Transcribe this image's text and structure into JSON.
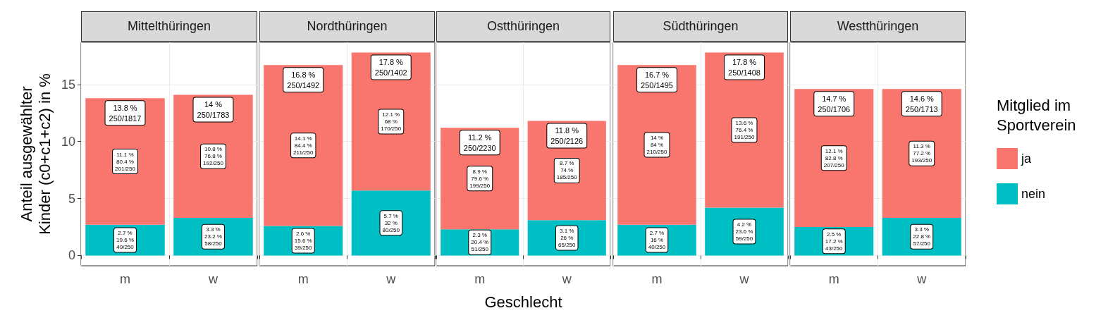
{
  "chart_data": [
    {
      "type": "bar",
      "stacked": true,
      "title": "Mittelthüringen",
      "ylabel": "Anteil ausgewählter\nKinder (c0+c1+c2) in %",
      "categories": [
        "m",
        "w"
      ],
      "ylim": [
        -0.9,
        18.7
      ],
      "yticks": [
        0,
        5,
        10,
        15
      ],
      "grid": true,
      "totals": [
        "13.8 %\n250/1817",
        "14 %\n250/1783"
      ],
      "series": [
        {
          "color": "#00bfc4",
          "values": [
            2.7,
            3.3
          ],
          "value_labels": [
            "2.7 %\n19.6 %\n49/250",
            "3.3 %\n23.2 %\n58/250"
          ]
        },
        {
          "color": "#f8766d",
          "values": [
            11.1,
            10.8
          ],
          "value_labels": [
            "11.1 %\n80.4 %\n201/250",
            "10.8 %\n76.8 %\n192/250"
          ]
        }
      ]
    },
    {
      "type": "bar",
      "stacked": true,
      "title": "Nordthüringen",
      "categories": [
        "m",
        "w"
      ],
      "ylim": [
        -0.9,
        18.7
      ],
      "yticks": [
        0,
        5,
        10,
        15
      ],
      "grid": true,
      "tick_labels": "x",
      "totals": [
        "16.8 %\n250/1492",
        "17.8 %\n250/1402"
      ],
      "series": [
        {
          "color": "#00bfc4",
          "values": [
            2.6,
            5.7
          ],
          "value_labels": [
            "2.6 %\n15.6 %\n39/250",
            "5.7 %\n32 %\n80/250"
          ]
        },
        {
          "color": "#f8766d",
          "values": [
            14.1,
            12.1
          ],
          "value_labels": [
            "14.1 %\n84.4 %\n211/250",
            "12.1 %\n68 %\n170/250"
          ]
        }
      ]
    },
    {
      "type": "bar",
      "stacked": true,
      "title": "Ostthüringen",
      "xlabel": "Geschlecht",
      "categories": [
        "m",
        "w"
      ],
      "ylim": [
        -0.9,
        18.7
      ],
      "yticks": [
        0,
        5,
        10,
        15
      ],
      "grid": true,
      "tick_labels": "x",
      "totals": [
        "11.2 %\n250/2230",
        "11.8 %\n250/2126"
      ],
      "series": [
        {
          "color": "#00bfc4",
          "values": [
            2.3,
            3.1
          ],
          "value_labels": [
            "2.3 %\n20.4 %\n51/250",
            "3.1 %\n26 %\n65/250"
          ]
        },
        {
          "color": "#f8766d",
          "values": [
            8.9,
            8.7
          ],
          "value_labels": [
            "8.9 %\n79.6 %\n199/250",
            "8.7 %\n74 %\n185/250"
          ]
        }
      ]
    },
    {
      "type": "bar",
      "stacked": true,
      "title": "Südthüringen",
      "categories": [
        "m",
        "w"
      ],
      "ylim": [
        -0.9,
        18.7
      ],
      "yticks": [
        0,
        5,
        10,
        15
      ],
      "grid": true,
      "tick_labels": "x",
      "totals": [
        "16.7 %\n250/1495",
        "17.8 %\n250/1408"
      ],
      "series": [
        {
          "color": "#00bfc4",
          "values": [
            2.7,
            4.2
          ],
          "value_labels": [
            "2.7 %\n16 %\n40/250",
            "4.2 %\n23.6 %\n59/250"
          ]
        },
        {
          "color": "#f8766d",
          "values": [
            14,
            13.6
          ],
          "value_labels": [
            "14 %\n84 %\n210/250",
            "13.6 %\n76.4 %\n191/250"
          ]
        }
      ]
    },
    {
      "type": "bar",
      "stacked": true,
      "title": "Westthüringen",
      "categories": [
        "m",
        "w"
      ],
      "ylim": [
        -0.9,
        18.7
      ],
      "yticks": [
        0,
        5,
        10,
        15
      ],
      "grid": true,
      "tick_labels": "x",
      "legend": "right",
      "legend_title": "Mitglied im\nSportverein",
      "totals": [
        "14.7 %\n250/1706",
        "14.6 %\n250/1713"
      ],
      "series": [
        {
          "name": "nein",
          "color": "#00bfc4",
          "values": [
            2.5,
            3.3
          ],
          "value_labels": [
            "2.5 %\n17.2 %\n43/250",
            "3.3 %\n22.8 %\n57/250"
          ]
        },
        {
          "name": "ja",
          "color": "#f8766d",
          "values": [
            12.1,
            11.3
          ],
          "value_labels": [
            "12.1 %\n82.8 %\n207/250",
            "11.3 %\n77.2 %\n193/250"
          ]
        }
      ]
    }
  ]
}
